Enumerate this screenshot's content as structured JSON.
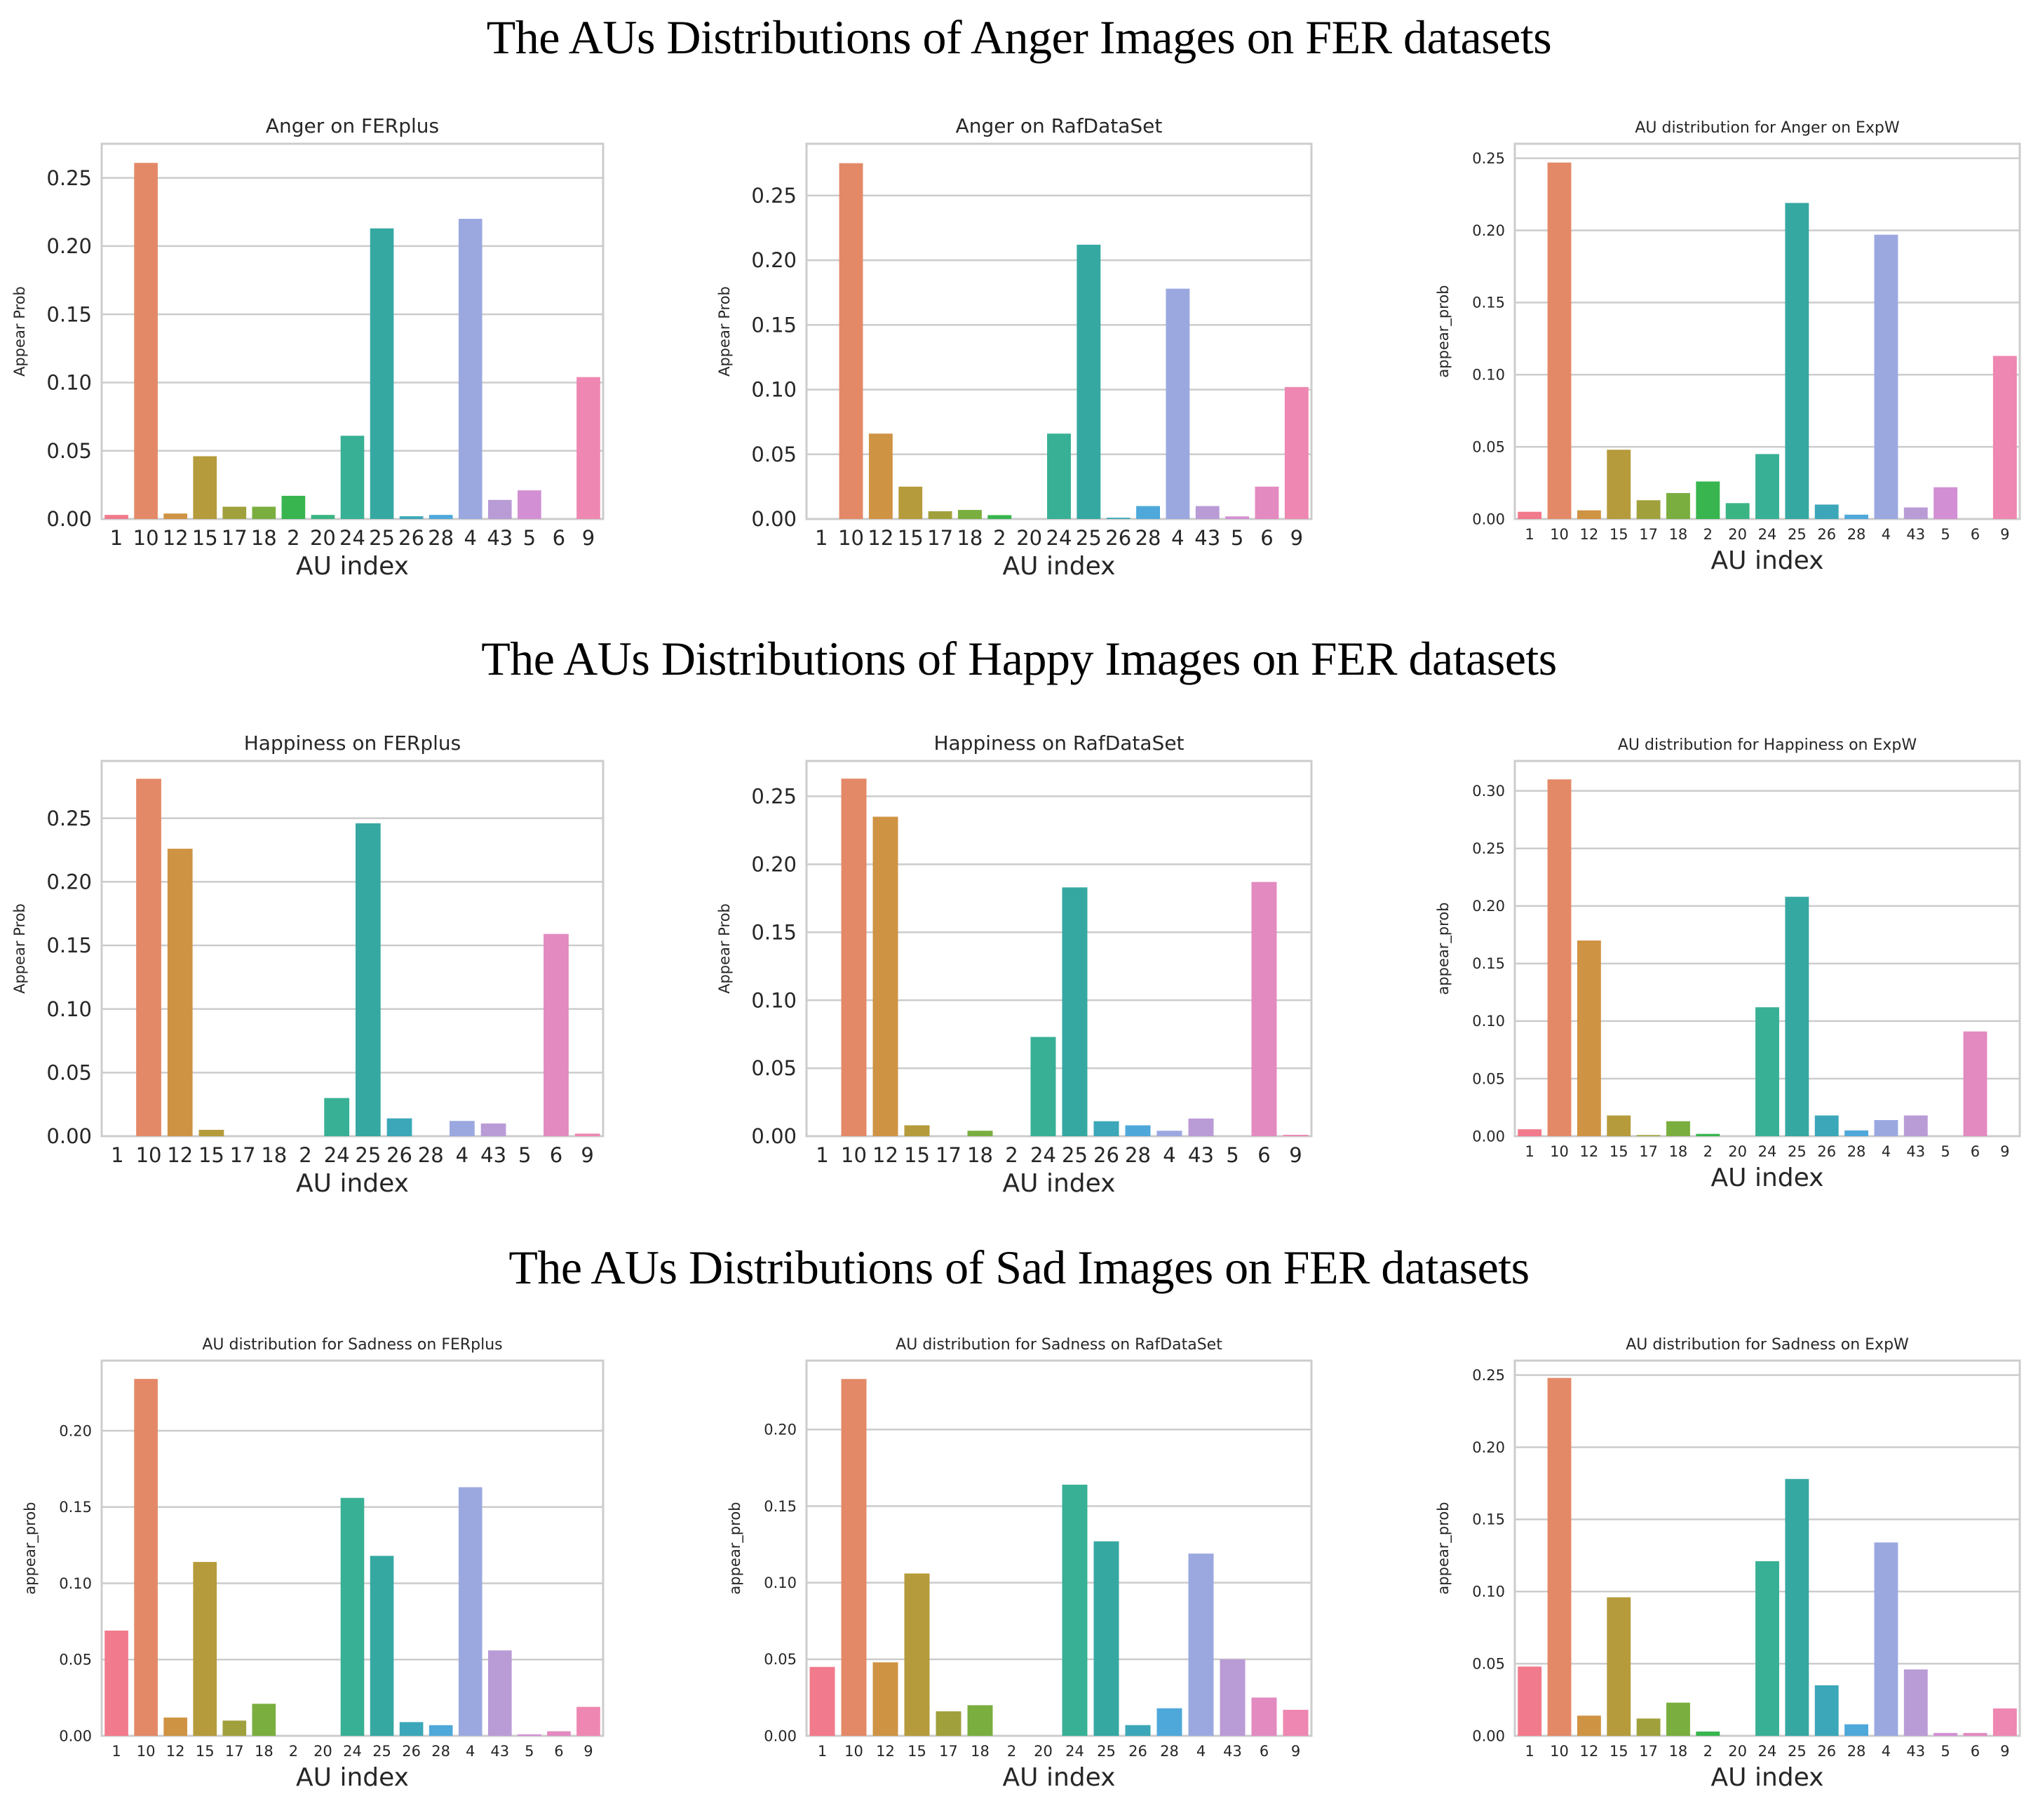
{
  "section_titles": [
    "The AUs Distributions of Anger Images on FER datasets",
    "The AUs Distributions of Happy Images on FER datasets",
    "The AUs Distributions of Sad Images on FER datasets"
  ],
  "palette": {
    "1": "#f17a8c",
    "10": "#e38967",
    "12": "#cf9344",
    "15": "#b59b3b",
    "17": "#a0a13c",
    "18": "#7aae3f",
    "2": "#38b54e",
    "20": "#3ab483",
    "24": "#38b095",
    "25": "#36a8a2",
    "26": "#3ba7b8",
    "28": "#4fa8da",
    "4": "#9ba8e0",
    "43": "#b99bd6",
    "5": "#d28fd3",
    "6": "#e38ac0",
    "9": "#ee87b1"
  },
  "chart_data": [
    {
      "type": "bar",
      "title": "Anger on FERplus",
      "xlabel": "AU index",
      "ylabel": "Appear Prob",
      "categories": [
        "1",
        "10",
        "12",
        "15",
        "17",
        "18",
        "2",
        "20",
        "24",
        "25",
        "26",
        "28",
        "4",
        "43",
        "5",
        "6",
        "9"
      ],
      "values": [
        0.003,
        0.261,
        0.004,
        0.046,
        0.009,
        0.009,
        0.017,
        0.003,
        0.061,
        0.213,
        0.002,
        0.003,
        0.22,
        0.014,
        0.021,
        0.0,
        0.104
      ],
      "ylim": [
        0,
        0.275
      ],
      "yticks": [
        "0.00",
        "0.05",
        "0.10",
        "0.15",
        "0.20",
        "0.25"
      ],
      "grid": true
    },
    {
      "type": "bar",
      "title": "Anger on RafDataSet",
      "xlabel": "AU index",
      "ylabel": "Appear Prob",
      "categories": [
        "1",
        "10",
        "12",
        "15",
        "17",
        "18",
        "2",
        "20",
        "24",
        "25",
        "26",
        "28",
        "4",
        "43",
        "5",
        "6",
        "9"
      ],
      "values": [
        0.0,
        0.275,
        0.066,
        0.025,
        0.006,
        0.007,
        0.003,
        0.0,
        0.066,
        0.212,
        0.001,
        0.01,
        0.178,
        0.01,
        0.002,
        0.025,
        0.102
      ],
      "ylim": [
        0,
        0.29
      ],
      "yticks": [
        "0.00",
        "0.05",
        "0.10",
        "0.15",
        "0.20",
        "0.25"
      ],
      "grid": true
    },
    {
      "type": "bar",
      "title": "AU distribution for Anger on ExpW",
      "xlabel": "AU index",
      "ylabel": "appear_prob",
      "categories": [
        "1",
        "10",
        "12",
        "15",
        "17",
        "18",
        "2",
        "20",
        "24",
        "25",
        "26",
        "28",
        "4",
        "43",
        "5",
        "6",
        "9"
      ],
      "values": [
        0.005,
        0.247,
        0.006,
        0.048,
        0.013,
        0.018,
        0.026,
        0.011,
        0.045,
        0.219,
        0.01,
        0.003,
        0.197,
        0.008,
        0.022,
        0.0,
        0.113
      ],
      "ylim": [
        0,
        0.26
      ],
      "yticks": [
        "0.00",
        "0.05",
        "0.10",
        "0.15",
        "0.20",
        "0.25"
      ],
      "grid": true
    },
    {
      "type": "bar",
      "title": "Happiness on FERplus",
      "xlabel": "AU index",
      "ylabel": "Appear Prob",
      "categories": [
        "1",
        "10",
        "12",
        "15",
        "17",
        "18",
        "2",
        "24",
        "25",
        "26",
        "28",
        "4",
        "43",
        "5",
        "6",
        "9"
      ],
      "values": [
        0.0,
        0.281,
        0.226,
        0.005,
        0.0,
        0.0,
        0.0,
        0.03,
        0.246,
        0.014,
        0.0,
        0.012,
        0.01,
        0.0,
        0.159,
        0.002
      ],
      "ylim": [
        0,
        0.295
      ],
      "yticks": [
        "0.00",
        "0.05",
        "0.10",
        "0.15",
        "0.20",
        "0.25"
      ],
      "grid": true
    },
    {
      "type": "bar",
      "title": "Happiness on RafDataSet",
      "xlabel": "AU index",
      "ylabel": "Appear Prob",
      "categories": [
        "1",
        "10",
        "12",
        "15",
        "17",
        "18",
        "2",
        "24",
        "25",
        "26",
        "28",
        "4",
        "43",
        "5",
        "6",
        "9"
      ],
      "values": [
        0.0,
        0.263,
        0.235,
        0.008,
        0.0,
        0.004,
        0.0,
        0.073,
        0.183,
        0.011,
        0.008,
        0.004,
        0.013,
        0.0,
        0.187,
        0.001
      ],
      "ylim": [
        0,
        0.276
      ],
      "yticks": [
        "0.00",
        "0.05",
        "0.10",
        "0.15",
        "0.20",
        "0.25"
      ],
      "grid": true
    },
    {
      "type": "bar",
      "title": "AU distribution for Happiness on ExpW",
      "xlabel": "AU index",
      "ylabel": "appear_prob",
      "categories": [
        "1",
        "10",
        "12",
        "15",
        "17",
        "18",
        "2",
        "20",
        "24",
        "25",
        "26",
        "28",
        "4",
        "43",
        "5",
        "6",
        "9"
      ],
      "values": [
        0.006,
        0.31,
        0.17,
        0.018,
        0.001,
        0.013,
        0.002,
        0.0,
        0.112,
        0.208,
        0.018,
        0.005,
        0.014,
        0.018,
        0.0,
        0.091,
        0.0
      ],
      "ylim": [
        0,
        0.326
      ],
      "yticks": [
        "0.00",
        "0.05",
        "0.10",
        "0.15",
        "0.20",
        "0.25",
        "0.30"
      ],
      "grid": true
    },
    {
      "type": "bar",
      "title": "AU distribution for Sadness on FERplus",
      "xlabel": "AU index",
      "ylabel": "appear_prob",
      "categories": [
        "1",
        "10",
        "12",
        "15",
        "17",
        "18",
        "2",
        "20",
        "24",
        "25",
        "26",
        "28",
        "4",
        "43",
        "5",
        "6",
        "9"
      ],
      "values": [
        0.069,
        0.234,
        0.012,
        0.114,
        0.01,
        0.021,
        0.0,
        0.0,
        0.156,
        0.118,
        0.009,
        0.007,
        0.163,
        0.056,
        0.001,
        0.003,
        0.019
      ],
      "ylim": [
        0,
        0.246
      ],
      "yticks": [
        "0.00",
        "0.05",
        "0.10",
        "0.15",
        "0.20"
      ],
      "grid": true
    },
    {
      "type": "bar",
      "title": "AU distribution for Sadness on RafDataSet",
      "xlabel": "AU index",
      "ylabel": "appear_prob",
      "categories": [
        "1",
        "10",
        "12",
        "15",
        "17",
        "18",
        "2",
        "20",
        "24",
        "25",
        "26",
        "28",
        "4",
        "43",
        "6",
        "9"
      ],
      "values": [
        0.045,
        0.233,
        0.048,
        0.106,
        0.016,
        0.02,
        0.0,
        0.0,
        0.164,
        0.127,
        0.007,
        0.018,
        0.119,
        0.05,
        0.025,
        0.017
      ],
      "ylim": [
        0,
        0.245
      ],
      "yticks": [
        "0.00",
        "0.05",
        "0.10",
        "0.15",
        "0.20"
      ],
      "grid": true
    },
    {
      "type": "bar",
      "title": "AU distribution for Sadness on ExpW",
      "xlabel": "AU index",
      "ylabel": "appear_prob",
      "categories": [
        "1",
        "10",
        "12",
        "15",
        "17",
        "18",
        "2",
        "20",
        "24",
        "25",
        "26",
        "28",
        "4",
        "43",
        "5",
        "6",
        "9"
      ],
      "values": [
        0.048,
        0.248,
        0.014,
        0.096,
        0.012,
        0.023,
        0.003,
        0.0,
        0.121,
        0.178,
        0.035,
        0.008,
        0.134,
        0.046,
        0.002,
        0.002,
        0.019
      ],
      "ylim": [
        0,
        0.26
      ],
      "yticks": [
        "0.00",
        "0.05",
        "0.10",
        "0.15",
        "0.20",
        "0.25"
      ],
      "grid": true
    }
  ]
}
